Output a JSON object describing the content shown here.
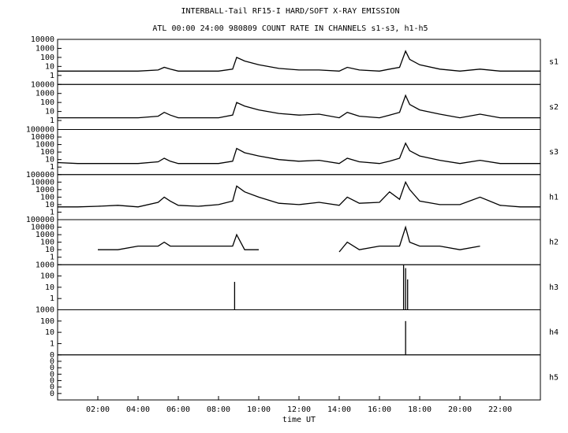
{
  "header": {
    "title": "INTERBALL-Tail RF15-I HARD/SOFT X-RAY EMISSION",
    "subtitle": "ATL 00:00 24:00 980809  COUNT RATE IN CHANNELS s1-s3, h1-h5"
  },
  "chart_data": [
    {
      "type": "line",
      "name": "s1",
      "log": true,
      "ylim": [
        0.1,
        10000
      ],
      "yticks": [
        1,
        10,
        100,
        1000,
        10000
      ],
      "xlim": [
        0,
        24
      ],
      "x": [
        0,
        1,
        2,
        3,
        4,
        5,
        5.3,
        5.6,
        6,
        7,
        8,
        8.7,
        8.9,
        9.3,
        10,
        11,
        12,
        13,
        14,
        14.4,
        15,
        16,
        16.5,
        17,
        17.3,
        17.5,
        18,
        19,
        20,
        21,
        22,
        23,
        24
      ],
      "values": [
        3,
        3,
        3,
        3,
        3,
        4,
        8,
        5,
        3,
        3,
        3,
        5,
        100,
        40,
        15,
        6,
        4,
        4,
        3,
        8,
        4,
        3,
        5,
        8,
        500,
        60,
        15,
        5,
        3,
        5,
        3,
        3,
        3
      ]
    },
    {
      "type": "line",
      "name": "s2",
      "log": true,
      "ylim": [
        0.1,
        10000
      ],
      "yticks": [
        1,
        10,
        100,
        1000,
        10000
      ],
      "xlim": [
        0,
        24
      ],
      "x": [
        0,
        1,
        2,
        3,
        4,
        5,
        5.3,
        5.6,
        6,
        7,
        8,
        8.7,
        8.9,
        9.3,
        10,
        11,
        12,
        13,
        14,
        14.4,
        15,
        16,
        16.5,
        17,
        17.3,
        17.5,
        18,
        19,
        20,
        21,
        22,
        23,
        24
      ],
      "values": [
        2,
        2,
        2,
        2,
        2,
        3,
        8,
        4,
        2,
        2,
        2,
        4,
        100,
        40,
        15,
        6,
        4,
        5,
        2,
        8,
        3,
        2,
        4,
        8,
        600,
        60,
        15,
        5,
        2,
        5,
        2,
        2,
        2
      ]
    },
    {
      "type": "line",
      "name": "s3",
      "log": true,
      "ylim": [
        0.1,
        100000
      ],
      "yticks": [
        1,
        10,
        100,
        1000,
        10000,
        100000
      ],
      "xlim": [
        0,
        24
      ],
      "x": [
        0,
        1,
        2,
        3,
        4,
        5,
        5.3,
        5.6,
        6,
        7,
        8,
        8.7,
        8.9,
        9.3,
        10,
        11,
        12,
        13,
        14,
        14.4,
        15,
        16,
        16.5,
        17,
        17.3,
        17.5,
        18,
        19,
        20,
        21,
        22,
        23,
        24
      ],
      "values": [
        4,
        3,
        3,
        3,
        3,
        5,
        15,
        6,
        3,
        3,
        3,
        6,
        300,
        80,
        30,
        10,
        6,
        8,
        3,
        15,
        5,
        3,
        6,
        15,
        1500,
        150,
        30,
        8,
        3,
        8,
        3,
        3,
        3
      ]
    },
    {
      "type": "line",
      "name": "h1",
      "log": true,
      "ylim": [
        0.1,
        100000
      ],
      "yticks": [
        1,
        10,
        100,
        1000,
        10000,
        100000
      ],
      "xlim": [
        0,
        24
      ],
      "x": [
        0,
        1,
        2,
        3,
        4,
        5,
        5.3,
        5.6,
        6,
        7,
        8,
        8.7,
        8.9,
        9.3,
        10,
        11,
        12,
        13,
        14,
        14.4,
        15,
        16,
        16.5,
        17,
        17.3,
        17.5,
        18,
        19,
        20,
        21,
        22,
        23,
        24
      ],
      "values": [
        5,
        5,
        6,
        8,
        5,
        20,
        100,
        30,
        8,
        6,
        10,
        30,
        3000,
        500,
        100,
        15,
        10,
        20,
        8,
        100,
        15,
        20,
        500,
        50,
        10000,
        1000,
        30,
        10,
        10,
        100,
        8,
        5,
        5
      ]
    },
    {
      "type": "line",
      "name": "h2",
      "log": true,
      "ylim": [
        0.1,
        100000
      ],
      "yticks": [
        1,
        10,
        100,
        1000,
        10000,
        100000
      ],
      "xlim": [
        0,
        24
      ],
      "x": [
        0,
        1,
        2,
        3,
        4,
        5,
        5.3,
        5.6,
        6,
        7,
        8,
        8.7,
        8.9,
        9.3,
        10,
        11,
        12,
        13,
        14,
        14.4,
        15,
        16,
        16.5,
        17,
        17.3,
        17.5,
        18,
        19,
        20,
        21,
        22,
        23,
        24
      ],
      "values": [
        null,
        null,
        10,
        10,
        30,
        30,
        100,
        30,
        30,
        30,
        30,
        30,
        1000,
        10,
        10,
        null,
        null,
        null,
        5,
        100,
        10,
        30,
        30,
        30,
        10000,
        100,
        30,
        30,
        10,
        30,
        null,
        null,
        null
      ]
    },
    {
      "type": "spike",
      "name": "h3",
      "log": true,
      "ylim": [
        0.1,
        1000
      ],
      "yticks": [
        1,
        10,
        100,
        1000
      ],
      "xlim": [
        0,
        24
      ],
      "x": [
        8.8,
        17.2,
        17.3,
        17.4
      ],
      "values": [
        30,
        1000,
        500,
        50
      ]
    },
    {
      "type": "spike",
      "name": "h4",
      "log": true,
      "ylim": [
        0.1,
        1000
      ],
      "yticks": [
        1,
        10,
        100,
        1000
      ],
      "xlim": [
        0,
        24
      ],
      "x": [
        17.3
      ],
      "values": [
        100
      ]
    },
    {
      "type": "line",
      "name": "h5",
      "log": false,
      "ylim": [
        0,
        7
      ],
      "xlim": [
        0,
        24
      ],
      "yticks": [
        {
          "value": 1,
          "label": "0"
        },
        {
          "value": 2,
          "label": "0"
        },
        {
          "value": 3,
          "label": "0"
        },
        {
          "value": 4,
          "label": "0"
        },
        {
          "value": 5,
          "label": "0"
        },
        {
          "value": 6,
          "label": "0"
        },
        {
          "value": 7,
          "label": "0"
        }
      ],
      "xlabel": "time UT",
      "xticks": [
        {
          "value": 2,
          "label": "02:00"
        },
        {
          "value": 4,
          "label": "04:00"
        },
        {
          "value": 6,
          "label": "06:00"
        },
        {
          "value": 8,
          "label": "08:00"
        },
        {
          "value": 10,
          "label": "10:00"
        },
        {
          "value": 12,
          "label": "12:00"
        },
        {
          "value": 14,
          "label": "14:00"
        },
        {
          "value": 16,
          "label": "16:00"
        },
        {
          "value": 18,
          "label": "18:00"
        },
        {
          "value": 20,
          "label": "20:00"
        },
        {
          "value": 22,
          "label": "22:00"
        }
      ]
    }
  ]
}
